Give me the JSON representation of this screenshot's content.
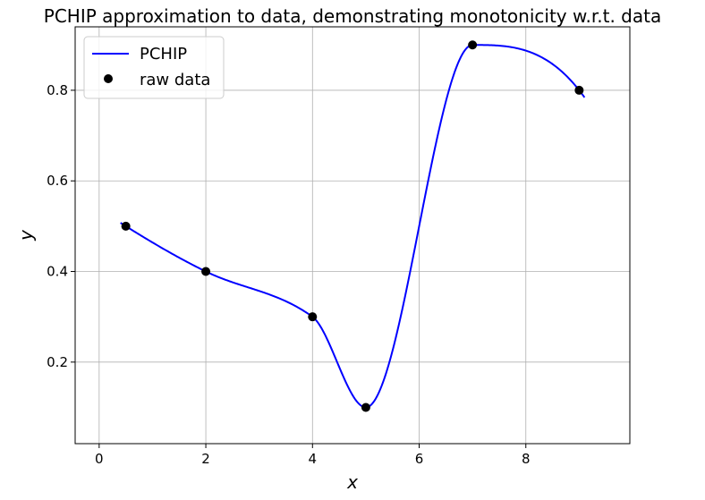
{
  "chart_data": {
    "type": "line",
    "title": "PCHIP approximation to data, demonstrating monotonicity w.r.t. data",
    "xlabel": "x",
    "ylabel": "y",
    "xlim": [
      -0.45,
      9.95
    ],
    "ylim": [
      0.02,
      0.94
    ],
    "xticks": [
      0,
      2,
      4,
      6,
      8
    ],
    "yticks": [
      0.2,
      0.4,
      0.6,
      0.8
    ],
    "xtick_labels": [
      "0",
      "2",
      "4",
      "6",
      "8"
    ],
    "ytick_labels": [
      "0.2",
      "0.4",
      "0.6",
      "0.8"
    ],
    "grid": true,
    "legend_position": "upper-left",
    "series": [
      {
        "name": "PCHIP",
        "kind": "line",
        "color": "#0000ff",
        "x_range": [
          0.4,
          9.1
        ]
      },
      {
        "name": "raw data",
        "kind": "markers",
        "color": "#000000",
        "x": [
          0.5,
          2,
          4,
          5,
          7,
          9
        ],
        "y": [
          0.5,
          0.4,
          0.3,
          0.1,
          0.9,
          0.8
        ]
      }
    ]
  }
}
